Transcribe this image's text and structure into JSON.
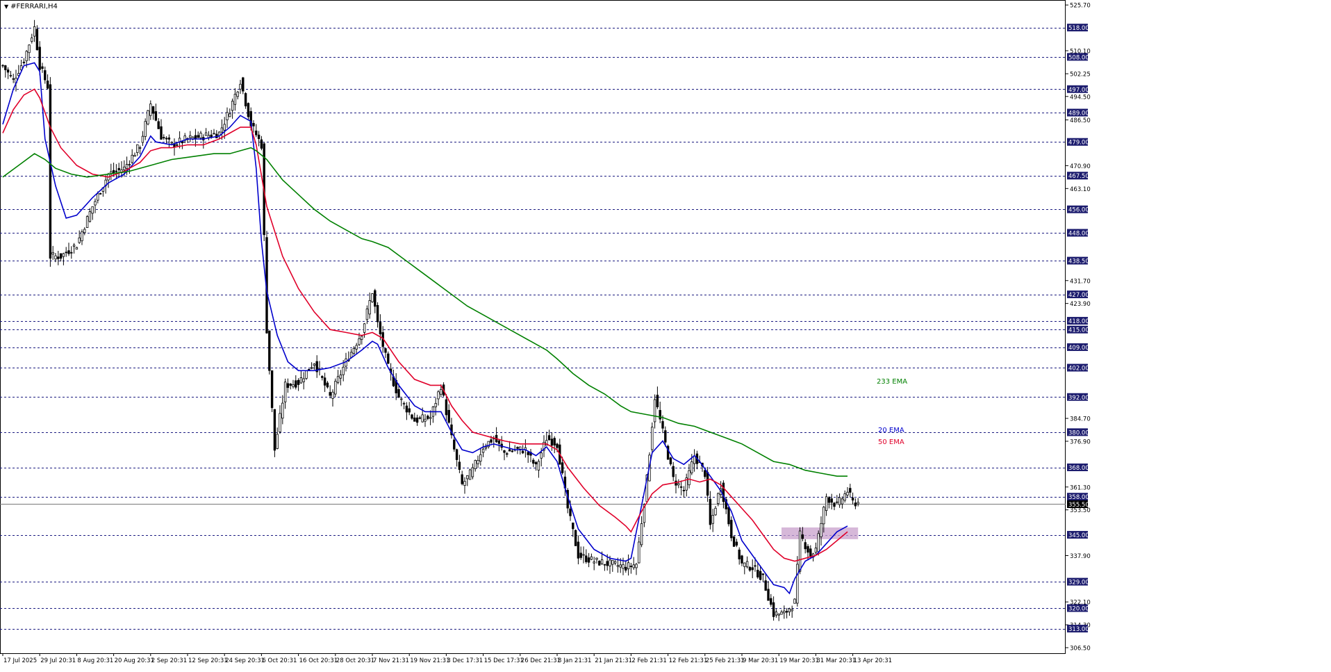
{
  "window": {
    "title": "#FERRARI,H4"
  },
  "chart_data": {
    "type": "candlestick",
    "symbol": "#FERRARI",
    "timeframe": "H4",
    "ylim": [
      304.6,
      527.4
    ],
    "price_scale_labels": [
      "525.70",
      "510.10",
      "502.25",
      "494.50",
      "486.50",
      "470.90",
      "463.10",
      "431.70",
      "423.90",
      "384.70",
      "376.90",
      "361.30",
      "353.50",
      "337.90",
      "322.10",
      "314.30",
      "306.50"
    ],
    "levels": [
      518.0,
      508.0,
      497.0,
      489.0,
      479.0,
      467.5,
      456.0,
      448.0,
      438.5,
      427.0,
      418.0,
      415.0,
      409.0,
      402.0,
      392.0,
      380.0,
      368.0,
      358.0,
      345.0,
      329.0,
      320.0,
      313.0
    ],
    "level_labels": [
      "518.00",
      "508.00",
      "497.00",
      "489.00",
      "479.00",
      "467.50",
      "456.00",
      "448.00",
      "438.50",
      "427.00",
      "418.00",
      "415.00",
      "409.00",
      "402.00",
      "392.00",
      "380.00",
      "368.00",
      "358.00",
      "345.00",
      "329.00",
      "320.00",
      "313.00"
    ],
    "current_price": 355.5,
    "current_price_label": "355.50",
    "x_labels": [
      "17 Jul 2025",
      "29 Jul 20:31",
      "8 Aug 20:31",
      "20 Aug 20:31",
      "2 Sep 20:31",
      "12 Sep 20:31",
      "24 Sep 20:31",
      "6 Oct 20:31",
      "16 Oct 20:31",
      "28 Oct 20:31",
      "7 Nov 21:31",
      "19 Nov 21:31",
      "3 Dec 17:31",
      "15 Dec 17:31",
      "26 Dec 21:31",
      "8 Jan 21:31",
      "21 Jan 21:31",
      "2 Feb 21:31",
      "12 Feb 21:31",
      "25 Feb 21:31",
      "9 Mar 20:31",
      "19 Mar 20:31",
      "31 Mar 20:31",
      "13 Apr 20:31"
    ],
    "x_label_index": [
      0,
      14,
      28,
      42,
      56,
      70,
      84,
      98,
      112,
      126,
      140,
      154,
      168,
      182,
      196,
      210,
      224,
      238,
      252,
      266,
      280,
      294,
      308,
      322
    ],
    "price_path": [
      [
        0,
        505
      ],
      [
        4,
        500
      ],
      [
        8,
        507
      ],
      [
        12,
        518
      ],
      [
        14,
        505
      ],
      [
        17,
        498
      ],
      [
        18,
        440
      ],
      [
        22,
        440
      ],
      [
        28,
        444
      ],
      [
        34,
        457
      ],
      [
        40,
        468
      ],
      [
        46,
        470
      ],
      [
        52,
        478
      ],
      [
        56,
        492
      ],
      [
        60,
        481
      ],
      [
        64,
        478
      ],
      [
        70,
        480
      ],
      [
        76,
        481
      ],
      [
        82,
        482
      ],
      [
        86,
        490
      ],
      [
        90,
        500
      ],
      [
        94,
        485
      ],
      [
        98,
        478
      ],
      [
        100,
        415
      ],
      [
        103,
        374
      ],
      [
        107,
        396
      ],
      [
        112,
        397
      ],
      [
        118,
        404
      ],
      [
        124,
        392
      ],
      [
        130,
        404
      ],
      [
        136,
        414
      ],
      [
        140,
        428
      ],
      [
        142,
        417
      ],
      [
        146,
        402
      ],
      [
        150,
        392
      ],
      [
        156,
        384
      ],
      [
        162,
        385
      ],
      [
        166,
        396
      ],
      [
        170,
        378
      ],
      [
        174,
        362
      ],
      [
        178,
        367
      ],
      [
        182,
        375
      ],
      [
        186,
        378
      ],
      [
        190,
        373
      ],
      [
        194,
        374
      ],
      [
        198,
        374
      ],
      [
        202,
        368
      ],
      [
        206,
        378
      ],
      [
        210,
        376
      ],
      [
        214,
        354
      ],
      [
        218,
        338
      ],
      [
        224,
        336
      ],
      [
        230,
        335
      ],
      [
        236,
        334
      ],
      [
        240,
        335
      ],
      [
        244,
        364
      ],
      [
        247,
        392
      ],
      [
        250,
        380
      ],
      [
        254,
        364
      ],
      [
        258,
        360
      ],
      [
        262,
        372
      ],
      [
        266,
        366
      ],
      [
        268,
        348
      ],
      [
        272,
        362
      ],
      [
        276,
        345
      ],
      [
        280,
        335
      ],
      [
        284,
        334
      ],
      [
        288,
        330
      ],
      [
        292,
        318
      ],
      [
        296,
        318
      ],
      [
        300,
        322
      ],
      [
        302,
        345
      ],
      [
        306,
        338
      ],
      [
        308,
        340
      ],
      [
        312,
        358
      ],
      [
        316,
        355
      ],
      [
        320,
        360
      ],
      [
        322,
        356
      ]
    ],
    "series": [
      {
        "name": "20 EMA",
        "color": "#0000cc",
        "values": [
          [
            0,
            485
          ],
          [
            4,
            497
          ],
          [
            8,
            505
          ],
          [
            12,
            506
          ],
          [
            14,
            503
          ],
          [
            16,
            480
          ],
          [
            20,
            464
          ],
          [
            24,
            453
          ],
          [
            28,
            454
          ],
          [
            34,
            460
          ],
          [
            40,
            465
          ],
          [
            46,
            468
          ],
          [
            52,
            474
          ],
          [
            56,
            481
          ],
          [
            58,
            479
          ],
          [
            64,
            478
          ],
          [
            70,
            480
          ],
          [
            76,
            480
          ],
          [
            82,
            481
          ],
          [
            86,
            484
          ],
          [
            90,
            488
          ],
          [
            94,
            486
          ],
          [
            96,
            470
          ],
          [
            98,
            445
          ],
          [
            100,
            428
          ],
          [
            104,
            413
          ],
          [
            108,
            404
          ],
          [
            112,
            401
          ],
          [
            118,
            401
          ],
          [
            124,
            402
          ],
          [
            130,
            404
          ],
          [
            136,
            408
          ],
          [
            140,
            411
          ],
          [
            142,
            410
          ],
          [
            146,
            402
          ],
          [
            150,
            396
          ],
          [
            156,
            389
          ],
          [
            160,
            387
          ],
          [
            166,
            387
          ],
          [
            170,
            380
          ],
          [
            174,
            374
          ],
          [
            178,
            373
          ],
          [
            182,
            375
          ],
          [
            186,
            376
          ],
          [
            190,
            375
          ],
          [
            194,
            374
          ],
          [
            198,
            374
          ],
          [
            202,
            372
          ],
          [
            206,
            375
          ],
          [
            210,
            370
          ],
          [
            214,
            358
          ],
          [
            218,
            347
          ],
          [
            224,
            340
          ],
          [
            230,
            337
          ],
          [
            236,
            336
          ],
          [
            238,
            337
          ],
          [
            242,
            355
          ],
          [
            246,
            373
          ],
          [
            250,
            377
          ],
          [
            254,
            371
          ],
          [
            258,
            369
          ],
          [
            262,
            372
          ],
          [
            264,
            370
          ],
          [
            268,
            365
          ],
          [
            272,
            360
          ],
          [
            276,
            353
          ],
          [
            280,
            343
          ],
          [
            284,
            338
          ],
          [
            288,
            333
          ],
          [
            292,
            328
          ],
          [
            296,
            327
          ],
          [
            298,
            325
          ],
          [
            300,
            330
          ],
          [
            304,
            336
          ],
          [
            308,
            338
          ],
          [
            312,
            342
          ],
          [
            316,
            346
          ],
          [
            320,
            348
          ]
        ]
      },
      {
        "name": "50 EMA",
        "color": "#e0002a",
        "values": [
          [
            0,
            482
          ],
          [
            4,
            490
          ],
          [
            8,
            495
          ],
          [
            12,
            497
          ],
          [
            14,
            494
          ],
          [
            18,
            484
          ],
          [
            22,
            477
          ],
          [
            28,
            471
          ],
          [
            34,
            468
          ],
          [
            40,
            467
          ],
          [
            46,
            469
          ],
          [
            52,
            472
          ],
          [
            56,
            476
          ],
          [
            60,
            477
          ],
          [
            64,
            477
          ],
          [
            70,
            478
          ],
          [
            76,
            478
          ],
          [
            82,
            480
          ],
          [
            86,
            482
          ],
          [
            90,
            484
          ],
          [
            94,
            484
          ],
          [
            96,
            478
          ],
          [
            100,
            457
          ],
          [
            106,
            440
          ],
          [
            112,
            429
          ],
          [
            118,
            421
          ],
          [
            124,
            415
          ],
          [
            130,
            414
          ],
          [
            136,
            413
          ],
          [
            140,
            414
          ],
          [
            144,
            412
          ],
          [
            150,
            404
          ],
          [
            156,
            398
          ],
          [
            162,
            396
          ],
          [
            166,
            396
          ],
          [
            170,
            389
          ],
          [
            174,
            384
          ],
          [
            178,
            380
          ],
          [
            182,
            379
          ],
          [
            186,
            378
          ],
          [
            190,
            377
          ],
          [
            196,
            376
          ],
          [
            202,
            376
          ],
          [
            206,
            376
          ],
          [
            210,
            374
          ],
          [
            214,
            368
          ],
          [
            220,
            361
          ],
          [
            226,
            355
          ],
          [
            232,
            351
          ],
          [
            236,
            348
          ],
          [
            238,
            346
          ],
          [
            242,
            353
          ],
          [
            246,
            359
          ],
          [
            250,
            362
          ],
          [
            256,
            363
          ],
          [
            260,
            364
          ],
          [
            264,
            363
          ],
          [
            268,
            364
          ],
          [
            272,
            362
          ],
          [
            276,
            358
          ],
          [
            280,
            354
          ],
          [
            284,
            350
          ],
          [
            288,
            345
          ],
          [
            292,
            340
          ],
          [
            296,
            337
          ],
          [
            300,
            336
          ],
          [
            304,
            337
          ],
          [
            308,
            338
          ],
          [
            312,
            340
          ],
          [
            316,
            343
          ],
          [
            320,
            346
          ]
        ]
      },
      {
        "name": "233 EMA",
        "color": "#008000",
        "values": [
          [
            0,
            467
          ],
          [
            6,
            471
          ],
          [
            12,
            475
          ],
          [
            16,
            473
          ],
          [
            20,
            470
          ],
          [
            26,
            468
          ],
          [
            32,
            467
          ],
          [
            40,
            468
          ],
          [
            48,
            469
          ],
          [
            56,
            471
          ],
          [
            64,
            473
          ],
          [
            72,
            474
          ],
          [
            80,
            475
          ],
          [
            86,
            475
          ],
          [
            90,
            476
          ],
          [
            94,
            477
          ],
          [
            96,
            476
          ],
          [
            100,
            473
          ],
          [
            106,
            466
          ],
          [
            112,
            461
          ],
          [
            118,
            456
          ],
          [
            124,
            452
          ],
          [
            130,
            449
          ],
          [
            136,
            446
          ],
          [
            140,
            445
          ],
          [
            146,
            443
          ],
          [
            152,
            439
          ],
          [
            158,
            435
          ],
          [
            164,
            431
          ],
          [
            170,
            427
          ],
          [
            176,
            423
          ],
          [
            182,
            420
          ],
          [
            188,
            417
          ],
          [
            194,
            414
          ],
          [
            200,
            411
          ],
          [
            206,
            408
          ],
          [
            210,
            405
          ],
          [
            216,
            400
          ],
          [
            222,
            396
          ],
          [
            228,
            393
          ],
          [
            234,
            389
          ],
          [
            238,
            387
          ],
          [
            244,
            386
          ],
          [
            250,
            385
          ],
          [
            256,
            383
          ],
          [
            262,
            382
          ],
          [
            268,
            380
          ],
          [
            274,
            378
          ],
          [
            280,
            376
          ],
          [
            286,
            373
          ],
          [
            292,
            370
          ],
          [
            298,
            369
          ],
          [
            304,
            367
          ],
          [
            310,
            366
          ],
          [
            316,
            365
          ],
          [
            320,
            365
          ]
        ]
      }
    ],
    "annotations": [
      {
        "text": "233 EMA",
        "color": "#008000"
      },
      {
        "text": "20 EMA",
        "color": "#0000cc"
      },
      {
        "text": "50 EMA",
        "color": "#e0002a"
      }
    ],
    "zone": {
      "price_low": 343.5,
      "price_high": 347.5,
      "x_start_index": 295,
      "x_end_index": 324,
      "color": "#c8a0cc"
    },
    "candle_count": 325
  }
}
